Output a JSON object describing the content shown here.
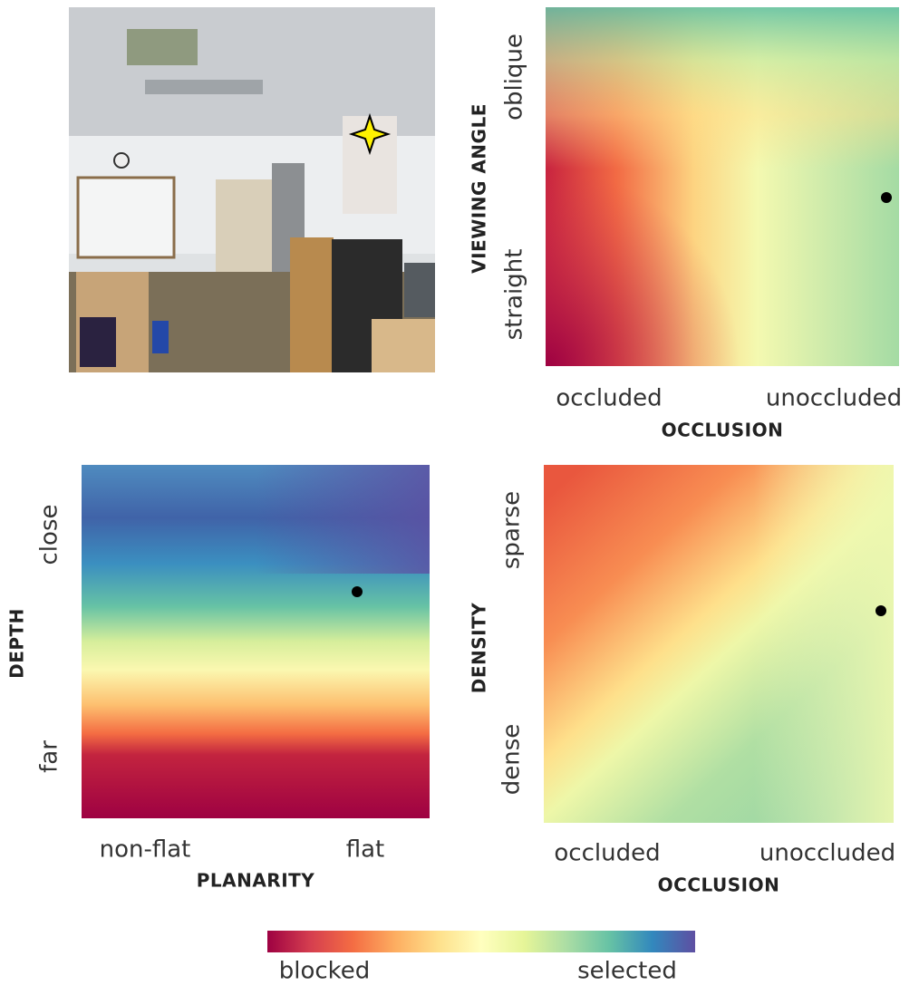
{
  "panels": [
    {
      "y_label": "VIEWING ANGLE",
      "y_ticks": [
        "oblique",
        "straight"
      ],
      "x_label": "OCCLUSION",
      "x_ticks": [
        "occluded",
        "unoccluded"
      ]
    },
    {
      "y_label": "DEPTH",
      "y_ticks": [
        "close",
        "far"
      ],
      "x_label": "PLANARITY",
      "x_ticks": [
        "non-flat",
        "flat"
      ]
    },
    {
      "y_label": "DENSITY",
      "y_ticks": [
        "sparse",
        "dense"
      ],
      "x_label": "OCCLUSION",
      "x_ticks": [
        "occluded",
        "unoccluded"
      ]
    }
  ],
  "colorbar": {
    "labels": [
      "blocked",
      "selected"
    ]
  }
}
